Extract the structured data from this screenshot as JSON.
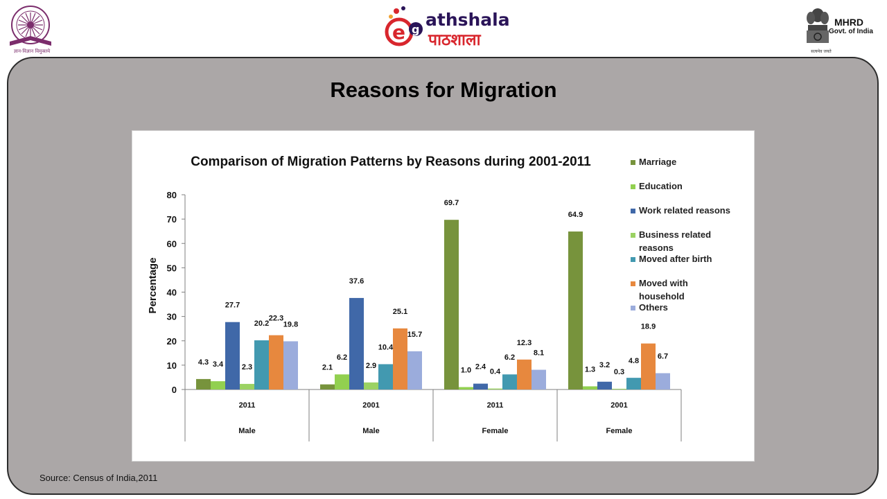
{
  "header": {
    "ugc_caption": "ज्ञान-विज्ञान विमुक्तये",
    "brand_en": "athshala",
    "brand_hi": "पाठशाला",
    "mhrd_title": "MHRD",
    "mhrd_sub": "Govt. of India",
    "mhrd_motto": "सत्यमेव जयते"
  },
  "slide": {
    "title": "Reasons for Migration",
    "source": "Source: Census of India,2011"
  },
  "chart_data": {
    "type": "bar",
    "title": "Comparison of Migration Patterns by Reasons during 2001-2011",
    "ylabel": "Percentage",
    "ylim": [
      0,
      80
    ],
    "yticks": [
      0,
      10,
      20,
      30,
      40,
      50,
      60,
      70,
      80
    ],
    "legend_position": "right",
    "categories": [
      {
        "year": "2011",
        "group": "Male"
      },
      {
        "year": "2001",
        "group": "Male"
      },
      {
        "year": "2011",
        "group": "Female"
      },
      {
        "year": "2001",
        "group": "Female"
      }
    ],
    "series": [
      {
        "name": "Marriage",
        "color": "#77933c",
        "values": [
          4.3,
          2.1,
          69.7,
          64.9
        ]
      },
      {
        "name": "Education",
        "color": "#92d050",
        "values": [
          3.4,
          6.2,
          1.0,
          1.3
        ]
      },
      {
        "name": "Work related reasons",
        "color": "#4068a8",
        "values": [
          27.7,
          37.6,
          2.4,
          3.2
        ]
      },
      {
        "name": "Business related reasons",
        "color": "#9bd263",
        "values": [
          2.3,
          2.9,
          0.4,
          0.3
        ]
      },
      {
        "name": "Moved after birth",
        "color": "#4299b0",
        "values": [
          20.2,
          10.4,
          6.2,
          4.8
        ]
      },
      {
        "name": "Moved with household",
        "color": "#e7883e",
        "values": [
          22.3,
          25.1,
          12.3,
          18.9
        ]
      },
      {
        "name": "Others",
        "color": "#9bacdc",
        "values": [
          19.8,
          15.7,
          8.1,
          6.7
        ]
      }
    ],
    "legend_lines": [
      [
        "Marriage"
      ],
      [
        "Education"
      ],
      [
        "Work related reasons"
      ],
      [
        "Business related",
        "reasons"
      ],
      [
        "Moved after birth"
      ],
      [
        "Moved with",
        "household"
      ],
      [
        "Others"
      ]
    ],
    "data_labels": [
      [
        "4.3",
        "2.1",
        "69.7",
        "64.9"
      ],
      [
        "3.4",
        "6.2",
        "1.0",
        "1.3"
      ],
      [
        "27.7",
        "37.6",
        "2.4",
        "3.2"
      ],
      [
        "2.3",
        "2.9",
        "0.4",
        "0.3"
      ],
      [
        "20.2",
        "10.4",
        "6.2",
        "4.8"
      ],
      [
        "22.3",
        "25.1",
        "12.3",
        "18.9"
      ],
      [
        "19.8",
        "15.7",
        "8.1",
        "6.7"
      ]
    ]
  }
}
